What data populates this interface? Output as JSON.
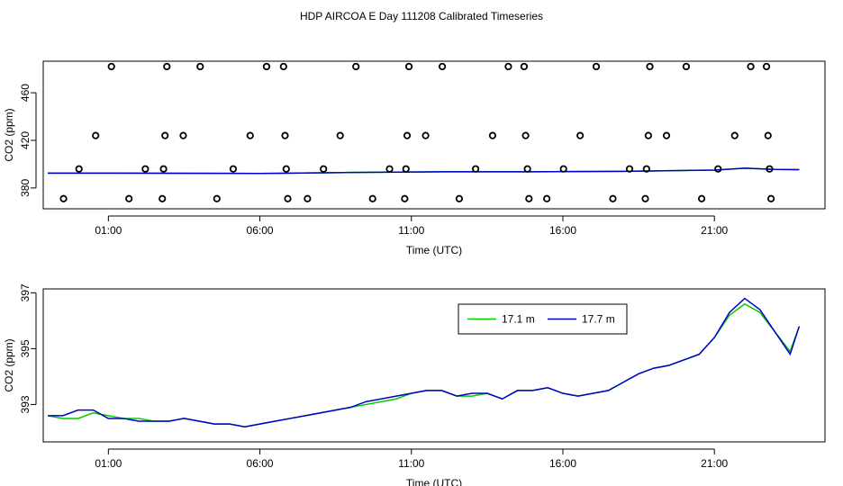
{
  "title": "HDP AIRCOA E  Day 111208  Calibrated Timeseries",
  "colors": {
    "series_17_1": "#00cc00",
    "series_17_7": "#0000cc",
    "points": "#000000"
  },
  "chart_data": [
    {
      "type": "scatter",
      "xlabel": "Time (UTC)",
      "ylabel": "CO2 (ppm)",
      "x_unit": "hours UTC",
      "x_ticks": [
        1,
        6,
        11,
        16,
        21
      ],
      "x_tick_labels": [
        "01:00",
        "06:00",
        "11:00",
        "16:00",
        "21:00"
      ],
      "y_ticks": [
        380,
        420,
        460
      ],
      "y_tick_labels": [
        "380",
        "420",
        "460"
      ],
      "xlim": [
        -1.15,
        24.65
      ],
      "ylim": [
        362.5,
        486.5
      ],
      "grid": false,
      "calibration_points": [
        {
          "x": -0.48,
          "y": 371
        },
        {
          "x": 0.03,
          "y": 396
        },
        {
          "x": 0.58,
          "y": 424
        },
        {
          "x": 1.1,
          "y": 482
        },
        {
          "x": 1.68,
          "y": 371
        },
        {
          "x": 2.22,
          "y": 396
        },
        {
          "x": 2.78,
          "y": 371
        },
        {
          "x": 2.82,
          "y": 396
        },
        {
          "x": 2.87,
          "y": 424
        },
        {
          "x": 2.93,
          "y": 482
        },
        {
          "x": 3.47,
          "y": 424
        },
        {
          "x": 4.03,
          "y": 482
        },
        {
          "x": 4.58,
          "y": 371
        },
        {
          "x": 5.12,
          "y": 396
        },
        {
          "x": 5.68,
          "y": 424
        },
        {
          "x": 6.22,
          "y": 482
        },
        {
          "x": 6.78,
          "y": 482
        },
        {
          "x": 6.83,
          "y": 424
        },
        {
          "x": 6.87,
          "y": 396
        },
        {
          "x": 6.92,
          "y": 371
        },
        {
          "x": 7.57,
          "y": 371
        },
        {
          "x": 8.1,
          "y": 396
        },
        {
          "x": 8.65,
          "y": 424
        },
        {
          "x": 9.17,
          "y": 482
        },
        {
          "x": 9.72,
          "y": 371
        },
        {
          "x": 10.28,
          "y": 396
        },
        {
          "x": 10.78,
          "y": 371
        },
        {
          "x": 10.82,
          "y": 396
        },
        {
          "x": 10.86,
          "y": 424
        },
        {
          "x": 10.92,
          "y": 482
        },
        {
          "x": 11.47,
          "y": 424
        },
        {
          "x": 12.02,
          "y": 482
        },
        {
          "x": 12.58,
          "y": 371
        },
        {
          "x": 13.12,
          "y": 396
        },
        {
          "x": 13.68,
          "y": 424
        },
        {
          "x": 14.2,
          "y": 482
        },
        {
          "x": 14.72,
          "y": 482
        },
        {
          "x": 14.77,
          "y": 424
        },
        {
          "x": 14.83,
          "y": 396
        },
        {
          "x": 14.88,
          "y": 371
        },
        {
          "x": 15.47,
          "y": 371
        },
        {
          "x": 16.02,
          "y": 396
        },
        {
          "x": 16.57,
          "y": 424
        },
        {
          "x": 17.1,
          "y": 482
        },
        {
          "x": 17.65,
          "y": 371
        },
        {
          "x": 18.2,
          "y": 396
        },
        {
          "x": 18.72,
          "y": 371
        },
        {
          "x": 18.76,
          "y": 396
        },
        {
          "x": 18.82,
          "y": 424
        },
        {
          "x": 18.87,
          "y": 482
        },
        {
          "x": 19.42,
          "y": 424
        },
        {
          "x": 20.07,
          "y": 482
        },
        {
          "x": 20.58,
          "y": 371
        },
        {
          "x": 21.12,
          "y": 396
        },
        {
          "x": 21.67,
          "y": 424
        },
        {
          "x": 22.2,
          "y": 482
        },
        {
          "x": 22.72,
          "y": 482
        },
        {
          "x": 22.77,
          "y": 424
        },
        {
          "x": 22.82,
          "y": 396
        },
        {
          "x": 22.87,
          "y": 371
        }
      ],
      "baseline_series": [
        {
          "x": -1.0,
          "y": 392.5
        },
        {
          "x": 3.0,
          "y": 392.4
        },
        {
          "x": 6.0,
          "y": 392.2
        },
        {
          "x": 9.0,
          "y": 393.0
        },
        {
          "x": 12.0,
          "y": 393.6
        },
        {
          "x": 15.0,
          "y": 393.6
        },
        {
          "x": 18.0,
          "y": 394.0
        },
        {
          "x": 21.0,
          "y": 395.0
        },
        {
          "x": 22.0,
          "y": 396.6
        },
        {
          "x": 23.0,
          "y": 395.6
        },
        {
          "x": 23.8,
          "y": 395.4
        }
      ]
    },
    {
      "type": "line",
      "xlabel": "Time (UTC)",
      "ylabel": "CO2 (ppm)",
      "x_unit": "hours UTC",
      "x_ticks": [
        1,
        6,
        11,
        16,
        21
      ],
      "x_tick_labels": [
        "01:00",
        "06:00",
        "11:00",
        "16:00",
        "21:00"
      ],
      "y_ticks": [
        393,
        395,
        397
      ],
      "y_tick_labels": [
        "393",
        "395",
        "397"
      ],
      "xlim": [
        -1.15,
        24.65
      ],
      "ylim": [
        391.66,
        397.14
      ],
      "grid": false,
      "legend": {
        "position": "top-right",
        "entries": [
          "17.1 m",
          "17.7 m"
        ]
      },
      "series": [
        {
          "name": "17.1 m",
          "color": "#00cc00",
          "x": [
            -1.0,
            -0.5,
            0.0,
            0.5,
            1.0,
            1.5,
            2.0,
            2.5,
            3.0,
            3.5,
            4.0,
            4.5,
            5.0,
            5.5,
            6.0,
            6.5,
            7.0,
            7.5,
            8.0,
            8.5,
            9.0,
            9.5,
            10.0,
            10.5,
            11.0,
            11.5,
            12.0,
            12.5,
            13.0,
            13.5,
            14.0,
            14.5,
            15.0,
            15.5,
            16.0,
            16.5,
            17.0,
            17.5,
            18.0,
            18.5,
            19.0,
            19.5,
            20.0,
            20.5,
            21.0,
            21.5,
            22.0,
            22.5,
            23.0,
            23.5,
            23.8
          ],
          "values": [
            392.6,
            392.5,
            392.5,
            392.7,
            392.6,
            392.5,
            392.5,
            392.4,
            392.4,
            392.5,
            392.4,
            392.3,
            392.3,
            392.2,
            392.3,
            392.4,
            392.5,
            392.6,
            392.7,
            392.8,
            392.9,
            393.0,
            393.1,
            393.2,
            393.4,
            393.5,
            393.5,
            393.3,
            393.3,
            393.4,
            393.2,
            393.5,
            393.5,
            393.6,
            393.4,
            393.3,
            393.4,
            393.5,
            393.8,
            394.1,
            394.3,
            394.4,
            394.6,
            394.8,
            395.4,
            396.2,
            396.6,
            396.3,
            395.6,
            394.9,
            395.8
          ]
        },
        {
          "name": "17.7 m",
          "color": "#0000cc",
          "x": [
            -1.0,
            -0.5,
            0.0,
            0.5,
            1.0,
            1.5,
            2.0,
            2.5,
            3.0,
            3.5,
            4.0,
            4.5,
            5.0,
            5.5,
            6.0,
            6.5,
            7.0,
            7.5,
            8.0,
            8.5,
            9.0,
            9.5,
            10.0,
            10.5,
            11.0,
            11.5,
            12.0,
            12.5,
            13.0,
            13.5,
            14.0,
            14.5,
            15.0,
            15.5,
            16.0,
            16.5,
            17.0,
            17.5,
            18.0,
            18.5,
            19.0,
            19.5,
            20.0,
            20.5,
            21.0,
            21.5,
            22.0,
            22.5,
            23.0,
            23.5,
            23.8
          ],
          "values": [
            392.6,
            392.6,
            392.8,
            392.8,
            392.5,
            392.5,
            392.4,
            392.4,
            392.4,
            392.5,
            392.4,
            392.3,
            392.3,
            392.2,
            392.3,
            392.4,
            392.5,
            392.6,
            392.7,
            392.8,
            392.9,
            393.1,
            393.2,
            393.3,
            393.4,
            393.5,
            393.5,
            393.3,
            393.4,
            393.4,
            393.2,
            393.5,
            393.5,
            393.6,
            393.4,
            393.3,
            393.4,
            393.5,
            393.8,
            394.1,
            394.3,
            394.4,
            394.6,
            394.8,
            395.4,
            396.3,
            396.8,
            396.4,
            395.6,
            394.8,
            395.8
          ]
        }
      ]
    }
  ]
}
